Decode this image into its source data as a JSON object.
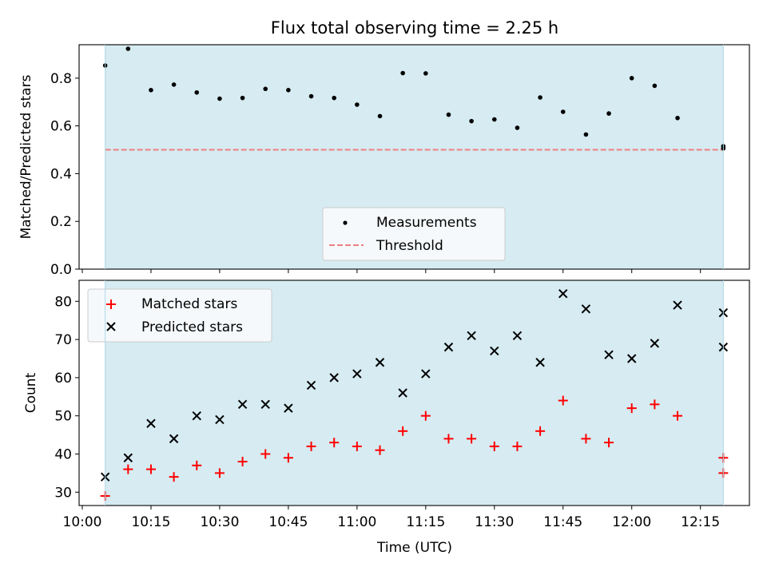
{
  "title": "Flux total observing time = 2.25 h",
  "colors": {
    "span_fill": "#add8e6",
    "threshold": "#f08080",
    "measurement": "#000000",
    "matched": "#ff0000",
    "predicted": "#000000"
  },
  "chart_data": [
    {
      "type": "scatter",
      "ylabel": "Matched/Predicted stars",
      "ylim": [
        0.0,
        0.94
      ],
      "yticks": [
        "0.0",
        "0.2",
        "0.4",
        "0.6",
        "0.8"
      ],
      "xlim": [
        "10:00",
        "12:25"
      ],
      "observing_span": [
        "10:05",
        "12:20"
      ],
      "threshold": 0.5,
      "legend": {
        "position": "lower-center",
        "measurements": "Measurements",
        "threshold": "Threshold"
      },
      "series": [
        {
          "name": "Measurements",
          "x": [
            "10:05",
            "10:10",
            "10:15",
            "10:20",
            "10:25",
            "10:30",
            "10:35",
            "10:40",
            "10:45",
            "10:50",
            "10:55",
            "11:00",
            "11:05",
            "11:10",
            "11:15",
            "11:20",
            "11:25",
            "11:30",
            "11:35",
            "11:40",
            "11:45",
            "11:50",
            "11:55",
            "12:00",
            "12:05",
            "12:10",
            "12:20",
            "12:20"
          ],
          "y": [
            0.853,
            0.923,
            0.75,
            0.773,
            0.74,
            0.714,
            0.717,
            0.755,
            0.75,
            0.724,
            0.717,
            0.689,
            0.641,
            0.821,
            0.82,
            0.647,
            0.62,
            0.627,
            0.592,
            0.719,
            0.659,
            0.564,
            0.652,
            0.8,
            0.768,
            0.633,
            0.506,
            0.515
          ]
        }
      ]
    },
    {
      "type": "scatter",
      "xlabel": "Time (UTC)",
      "ylabel": "Count",
      "ylim": [
        26.5,
        85.5
      ],
      "yticks": [
        "30",
        "40",
        "50",
        "60",
        "70",
        "80"
      ],
      "xticks": [
        "10:00",
        "10:15",
        "10:30",
        "10:45",
        "11:00",
        "11:15",
        "11:30",
        "11:45",
        "12:00",
        "12:15"
      ],
      "xlim": [
        "10:00",
        "12:25"
      ],
      "observing_span": [
        "10:05",
        "12:20"
      ],
      "legend": {
        "position": "upper-left"
      },
      "series": [
        {
          "name": "Matched stars",
          "x": [
            "10:05",
            "10:10",
            "10:15",
            "10:20",
            "10:25",
            "10:30",
            "10:35",
            "10:40",
            "10:45",
            "10:50",
            "10:55",
            "11:00",
            "11:05",
            "11:10",
            "11:15",
            "11:20",
            "11:25",
            "11:30",
            "11:35",
            "11:40",
            "11:45",
            "11:50",
            "11:55",
            "12:00",
            "12:05",
            "12:10",
            "12:20",
            "12:20"
          ],
          "y": [
            29,
            36,
            36,
            34,
            37,
            35,
            38,
            40,
            39,
            42,
            43,
            42,
            41,
            46,
            50,
            44,
            44,
            42,
            42,
            46,
            54,
            44,
            43,
            52,
            53,
            50,
            39,
            35
          ]
        },
        {
          "name": "Predicted stars",
          "x": [
            "10:05",
            "10:10",
            "10:15",
            "10:20",
            "10:25",
            "10:30",
            "10:35",
            "10:40",
            "10:45",
            "10:50",
            "10:55",
            "11:00",
            "11:05",
            "11:10",
            "11:15",
            "11:20",
            "11:25",
            "11:30",
            "11:35",
            "11:40",
            "11:45",
            "11:50",
            "11:55",
            "12:00",
            "12:05",
            "12:10",
            "12:20",
            "12:20"
          ],
          "y": [
            34,
            39,
            48,
            44,
            50,
            49,
            53,
            53,
            52,
            58,
            60,
            61,
            64,
            56,
            61,
            68,
            71,
            67,
            71,
            64,
            82,
            78,
            66,
            65,
            69,
            79,
            77,
            68
          ]
        }
      ]
    }
  ]
}
